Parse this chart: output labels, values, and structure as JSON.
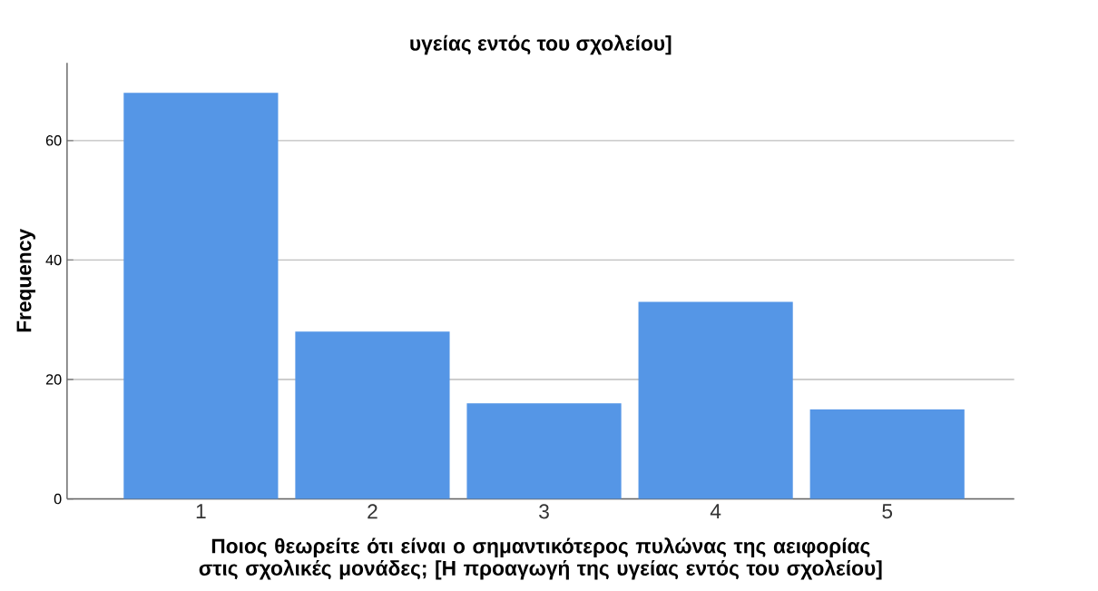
{
  "chart_data": {
    "type": "bar",
    "title": "υγείας εντός του σχολείου]",
    "xlabel": "Ποιος θεωρείτε ότι είναι ο σημαντικότερος πυλώνας της αειφορίας στις σχολικές μονάδες; [Η προαγωγή της υγείας εντός του σχολείου]",
    "ylabel": "Frequency",
    "categories": [
      "1",
      "2",
      "3",
      "4",
      "5"
    ],
    "values": [
      68,
      28,
      16,
      33,
      15
    ],
    "color": "#5596e6",
    "ylim": [
      0,
      73
    ],
    "yticks": [
      0,
      20,
      40,
      60
    ],
    "grid": "y"
  }
}
